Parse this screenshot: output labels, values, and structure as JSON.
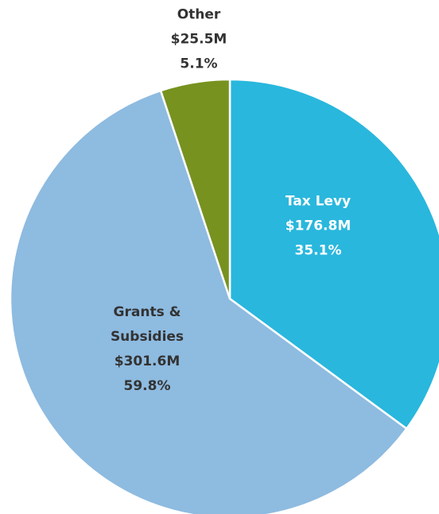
{
  "chart_data": {
    "type": "pie",
    "categories": [
      "Tax Levy",
      "Grants & Subsidies",
      "Other"
    ],
    "values": [
      35.1,
      59.8,
      5.1
    ],
    "value_labels": [
      "35.1%",
      "59.8%",
      "5.1%"
    ],
    "amounts": [
      176.8,
      301.6,
      25.5
    ],
    "amount_labels": [
      "$176.8M",
      "$301.6M",
      "$25.5M"
    ],
    "colors": [
      "#29b7dd",
      "#8ebbe0",
      "#77921f"
    ]
  }
}
